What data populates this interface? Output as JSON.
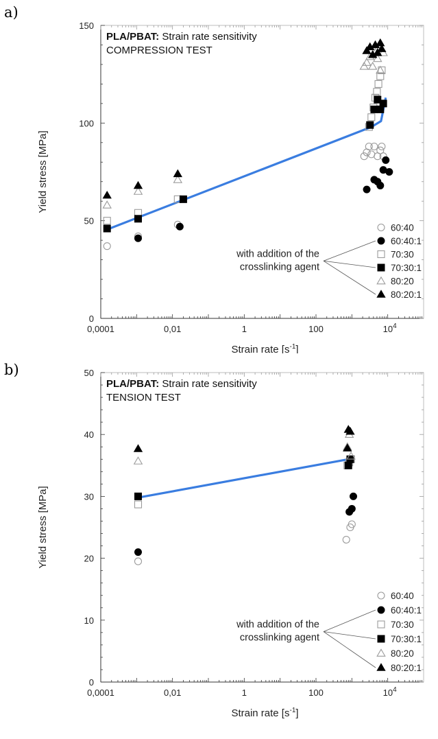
{
  "panels": [
    {
      "letter": "a)"
    },
    {
      "letter": "b)"
    }
  ],
  "chart_data": [
    {
      "type": "scatter",
      "title_bold": "PLA/PBAT:",
      "title_rest": " Strain rate sensitivity",
      "subtitle": "COMPRESSION TEST",
      "xlabel_base": "Strain rate [s",
      "xlabel_sup": "-1",
      "xlabel_end": "]",
      "ylabel": "Yield stress [MPa]",
      "xscale": "log",
      "xlim": [
        0.0001,
        100000
      ],
      "ylim": [
        0,
        150
      ],
      "xticks": [
        {
          "v": 0.0001,
          "label": "0,0001"
        },
        {
          "v": 0.01,
          "label": "0,01"
        },
        {
          "v": 1,
          "label": "1"
        },
        {
          "v": 100,
          "label": "100"
        },
        {
          "v": 10000,
          "label": "10",
          "sup": "4"
        }
      ],
      "yticks": [
        0,
        50,
        100,
        150
      ],
      "legend_position": "bottom-right",
      "annotation": [
        "with addition of the",
        "crosslinking agent"
      ],
      "series": [
        {
          "name": "60:40",
          "marker": "circle-open",
          "points": [
            [
              0.00015,
              37
            ],
            [
              0.0011,
              42
            ],
            [
              0.014,
              48
            ],
            [
              2200,
              83
            ],
            [
              2600,
              85
            ],
            [
              3000,
              88
            ],
            [
              3500,
              84
            ],
            [
              4200,
              88
            ],
            [
              5200,
              83
            ],
            [
              6200,
              86
            ],
            [
              6800,
              88
            ],
            [
              7500,
              83
            ]
          ]
        },
        {
          "name": "60:40:1",
          "marker": "circle-filled",
          "points": [
            [
              0.0011,
              41
            ],
            [
              0.016,
              47
            ],
            [
              2600,
              66
            ],
            [
              4200,
              71
            ],
            [
              5200,
              70
            ],
            [
              6200,
              68
            ],
            [
              7500,
              76
            ],
            [
              8800,
              81
            ],
            [
              11000,
              75
            ]
          ]
        },
        {
          "name": "70:30",
          "marker": "square-open",
          "points": [
            [
              0.00015,
              50
            ],
            [
              0.0011,
              54
            ],
            [
              0.014,
              61
            ],
            [
              3000,
              98
            ],
            [
              3500,
              103
            ],
            [
              4000,
              108
            ],
            [
              4500,
              113
            ],
            [
              5000,
              116
            ],
            [
              5500,
              120
            ],
            [
              6200,
              124
            ],
            [
              6800,
              127
            ]
          ]
        },
        {
          "name": "70:30:1",
          "marker": "square-filled",
          "points": [
            [
              0.00015,
              46
            ],
            [
              0.0011,
              51
            ],
            [
              0.02,
              61
            ],
            [
              3200,
              99
            ],
            [
              4200,
              107
            ],
            [
              5200,
              112
            ],
            [
              6200,
              107
            ],
            [
              7500,
              110
            ]
          ]
        },
        {
          "name": "80:20",
          "marker": "triangle-open",
          "points": [
            [
              0.00015,
              58
            ],
            [
              0.0011,
              65
            ],
            [
              0.014,
              71
            ],
            [
              2200,
              129
            ],
            [
              2600,
              131
            ],
            [
              3200,
              134
            ],
            [
              3800,
              129
            ],
            [
              4500,
              136
            ],
            [
              5200,
              133
            ],
            [
              6200,
              127
            ],
            [
              7500,
              136
            ]
          ]
        },
        {
          "name": "80:20:1",
          "marker": "triangle-filled",
          "points": [
            [
              0.00015,
              63
            ],
            [
              0.0011,
              68
            ],
            [
              0.014,
              74
            ],
            [
              2600,
              137
            ],
            [
              3200,
              139
            ],
            [
              3800,
              135
            ],
            [
              4500,
              140
            ],
            [
              5200,
              136
            ],
            [
              6200,
              141
            ],
            [
              6800,
              138
            ]
          ]
        }
      ],
      "fit_line": [
        [
          0.00015,
          45.5
        ],
        [
          3500,
          98
        ],
        [
          6500,
          101
        ],
        [
          8800,
          113
        ]
      ]
    },
    {
      "type": "scatter",
      "title_bold": "PLA/PBAT:",
      "title_rest": " Strain rate sensitivity",
      "subtitle": "TENSION TEST",
      "xlabel_base": "Strain rate [s",
      "xlabel_sup": "-1",
      "xlabel_end": "]",
      "ylabel": "Yield stress [MPa]",
      "xscale": "log",
      "xlim": [
        0.0001,
        100000
      ],
      "ylim": [
        0,
        50
      ],
      "xticks": [
        {
          "v": 0.0001,
          "label": "0,0001"
        },
        {
          "v": 0.01,
          "label": "0,01"
        },
        {
          "v": 1,
          "label": "1"
        },
        {
          "v": 100,
          "label": "100"
        },
        {
          "v": 10000,
          "label": "10",
          "sup": "4"
        }
      ],
      "yticks": [
        0,
        10,
        20,
        30,
        40,
        50
      ],
      "legend_position": "bottom-right",
      "annotation": [
        "with addition of the",
        "crosslinking agent"
      ],
      "series": [
        {
          "name": "60:40",
          "marker": "circle-open",
          "points": [
            [
              0.0011,
              19.5
            ],
            [
              700,
              23
            ],
            [
              900,
              25
            ],
            [
              1000,
              25.5
            ]
          ]
        },
        {
          "name": "60:40:1",
          "marker": "circle-filled",
          "points": [
            [
              0.0011,
              21
            ],
            [
              850,
              27.5
            ],
            [
              1000,
              28
            ],
            [
              1100,
              30
            ]
          ]
        },
        {
          "name": "70:30",
          "marker": "square-open",
          "points": [
            [
              0.0011,
              28.7
            ],
            [
              750,
              35
            ],
            [
              850,
              35.5
            ],
            [
              950,
              36
            ]
          ]
        },
        {
          "name": "70:30:1",
          "marker": "square-filled",
          "points": [
            [
              0.0011,
              30
            ],
            [
              800,
              35
            ],
            [
              900,
              36
            ]
          ]
        },
        {
          "name": "80:20",
          "marker": "triangle-open",
          "points": [
            [
              0.0011,
              35.7
            ],
            [
              750,
              38
            ],
            [
              850,
              40
            ],
            [
              950,
              36.5
            ]
          ]
        },
        {
          "name": "80:20:1",
          "marker": "triangle-filled",
          "points": [
            [
              0.0011,
              37.7
            ],
            [
              800,
              40.8
            ],
            [
              900,
              40.5
            ],
            [
              750,
              37.8
            ]
          ]
        }
      ],
      "fit_line": [
        [
          0.0011,
          29.8
        ],
        [
          800,
          36
        ]
      ]
    }
  ],
  "colors": {
    "fit_line": "#3a7de0",
    "open_marker": "#9a9a9a",
    "filled_marker": "#000000",
    "axis": "#333333"
  }
}
